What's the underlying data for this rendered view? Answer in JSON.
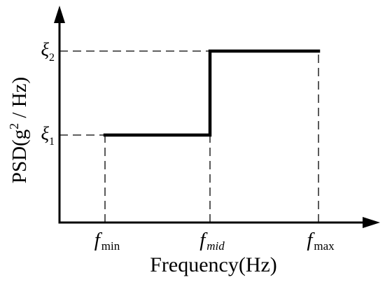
{
  "chart_data": {
    "type": "line",
    "step": true,
    "xlabel": "Frequency(Hz)",
    "ylabel": {
      "main": "PSD(g",
      "sup": "2",
      "tail": " / Hz)"
    },
    "xticks": [
      {
        "base": "f",
        "sub": "min"
      },
      {
        "base": "f",
        "sub": "mid"
      },
      {
        "base": "f",
        "sub": "max"
      }
    ],
    "yticks": [
      {
        "base": "ξ",
        "sub": "1"
      },
      {
        "base": "ξ",
        "sub": "2"
      }
    ],
    "steps": [
      {
        "x_from": 0,
        "x_to": 1,
        "level": 0
      },
      {
        "x_from": 1,
        "x_to": 2,
        "level": 1
      }
    ],
    "grid": false,
    "legend": "none",
    "colors": {
      "line": "#000000",
      "axes": "#000000",
      "guides": "#000000"
    }
  }
}
